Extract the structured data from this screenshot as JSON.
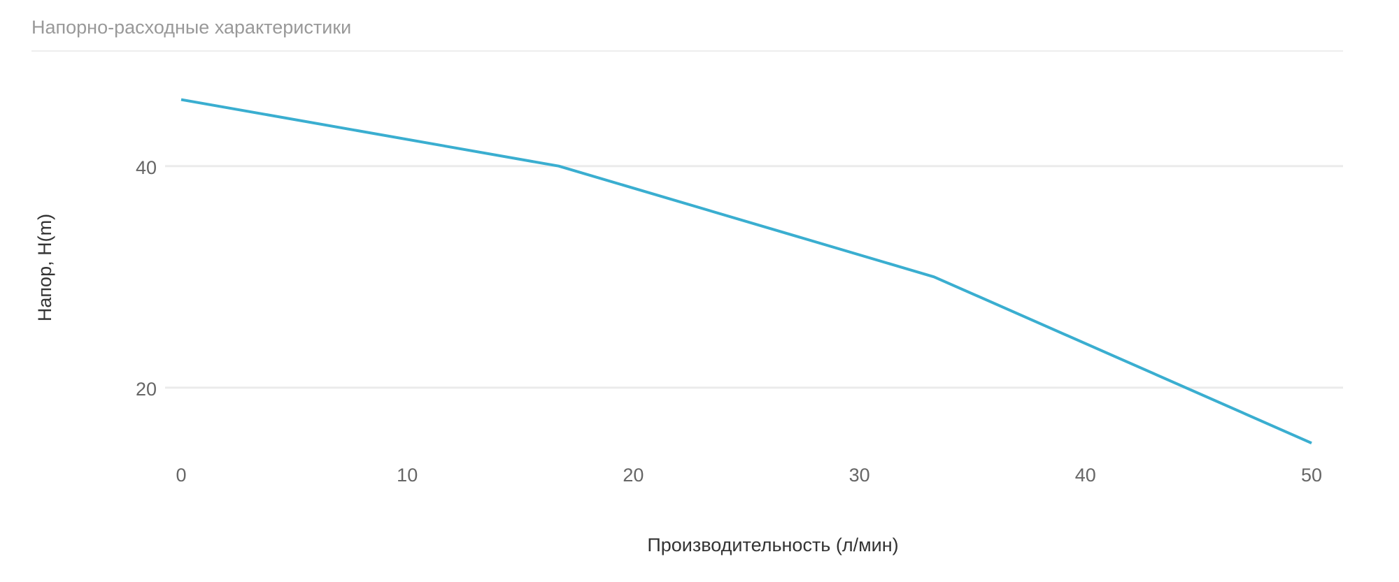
{
  "chart_data": {
    "type": "line",
    "title": "Напорно-расходные характеристики",
    "x_label": "Производительность (л/мин)",
    "y_label": "Напор, H(m)",
    "x": [
      0,
      16.7,
      33.3,
      50
    ],
    "series": [
      {
        "name": "Напор",
        "color": "#3aaed0",
        "values": [
          46,
          40,
          30,
          15
        ]
      }
    ],
    "xlim": [
      0,
      50
    ],
    "xticks": [
      0,
      10,
      20,
      30,
      40,
      50
    ],
    "ylim": [
      14,
      49
    ],
    "yticks": [
      20,
      40
    ],
    "grid": true
  }
}
